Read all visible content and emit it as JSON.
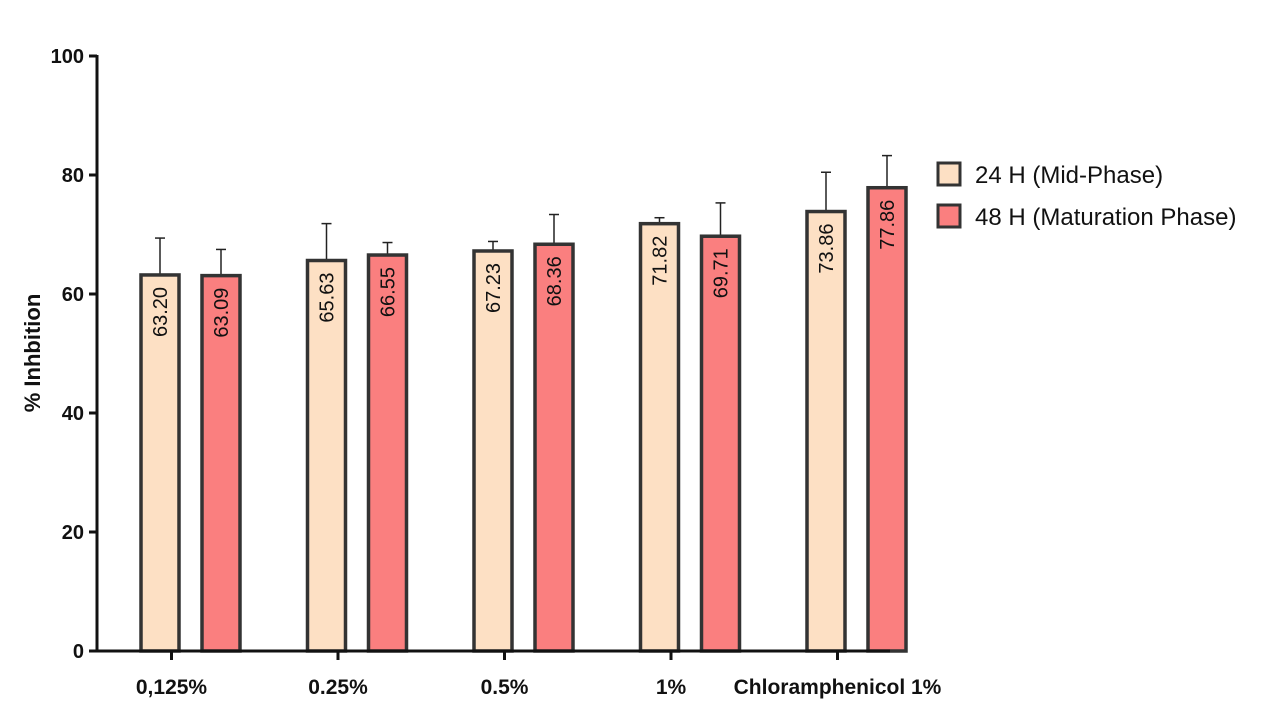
{
  "chart_data": {
    "type": "bar",
    "ylabel": "% Inhbition",
    "xlabel": "",
    "ylim": [
      0,
      100
    ],
    "yticks": [
      0,
      20,
      40,
      60,
      80,
      100
    ],
    "categories": [
      "0,125%",
      "0.25%",
      "0.5%",
      "1%",
      "Chloramphenicol 1%"
    ],
    "series": [
      {
        "name": "24 H (Mid-Phase)",
        "color": "#FDE0C4",
        "values": [
          63.2,
          65.63,
          67.23,
          71.82,
          73.86
        ],
        "labels": [
          "63.20",
          "65.63",
          "67.23",
          "71.82",
          "73.86"
        ],
        "error": [
          6.2,
          6.2,
          1.6,
          1.0,
          6.6
        ]
      },
      {
        "name": "48 H (Maturation Phase)",
        "color": "#FA7F7F",
        "values": [
          63.09,
          66.55,
          68.36,
          69.71,
          77.86
        ],
        "labels": [
          "63.09",
          "66.55",
          "68.36",
          "69.71",
          "77.86"
        ],
        "error": [
          4.4,
          2.1,
          5.0,
          5.6,
          5.4
        ]
      }
    ],
    "legend_position": "right"
  }
}
